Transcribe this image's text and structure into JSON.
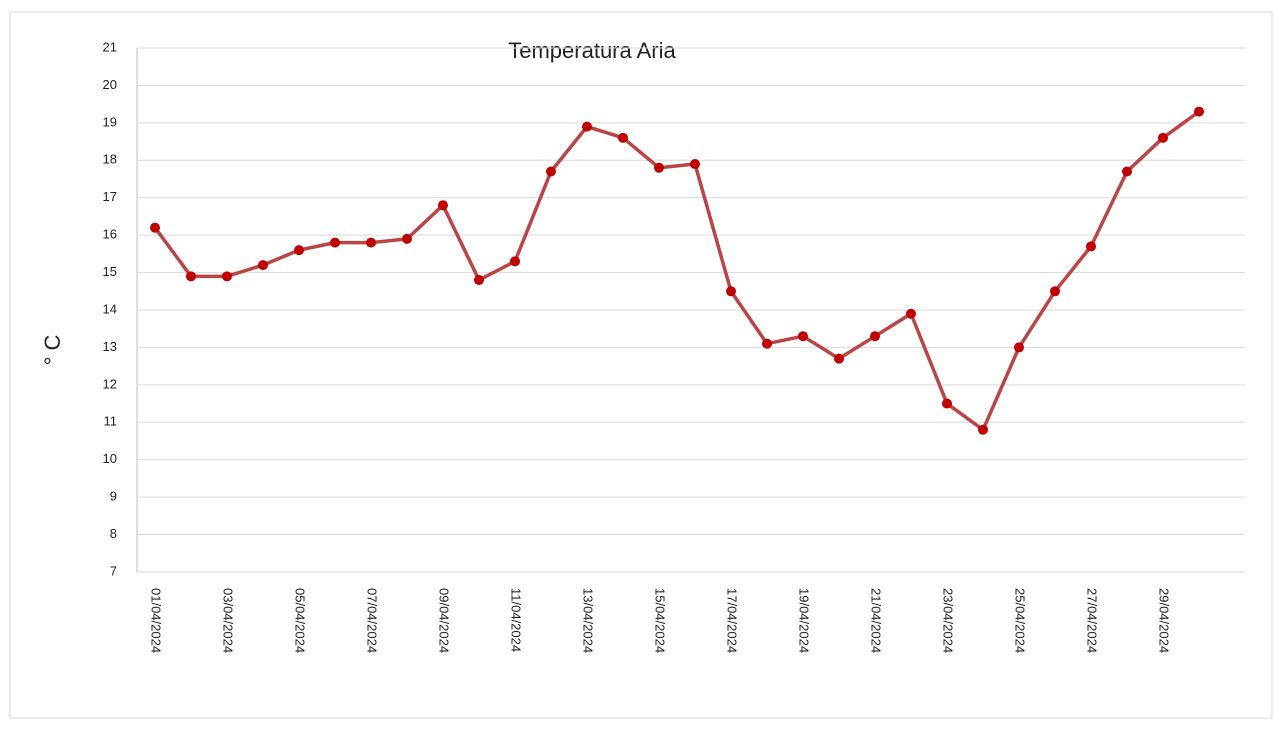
{
  "chart_data": {
    "type": "line",
    "title": "Temperatura  Aria",
    "y_label": "° C",
    "categories": [
      "01/04/2024",
      null,
      "03/04/2024",
      null,
      "05/04/2024",
      null,
      "07/04/2024",
      null,
      "09/04/2024",
      null,
      "11/04/2024",
      null,
      "13/04/2024",
      null,
      "15/04/2024",
      null,
      "17/04/2024",
      null,
      "19/04/2024",
      null,
      "21/04/2024",
      null,
      "23/04/2024",
      null,
      "25/04/2024",
      null,
      "27/04/2024",
      null,
      "29/04/2024",
      null
    ],
    "series": [
      {
        "color": "#b94545",
        "marker_color": "#c00000",
        "values": [
          16.2,
          14.9,
          14.9,
          15.2,
          15.6,
          15.8,
          15.8,
          15.9,
          16.8,
          14.8,
          15.3,
          17.7,
          18.9,
          18.6,
          17.8,
          17.9,
          14.5,
          13.1,
          13.3,
          12.7,
          13.3,
          13.9,
          11.5,
          10.8,
          13.0,
          14.5,
          15.7,
          17.7,
          18.6,
          19.3
        ]
      }
    ],
    "ylim": [
      7,
      21
    ],
    "yticks": [
      7,
      8,
      9,
      10,
      11,
      12,
      13,
      14,
      15,
      16,
      17,
      18,
      19,
      20,
      21
    ],
    "grid": true
  }
}
